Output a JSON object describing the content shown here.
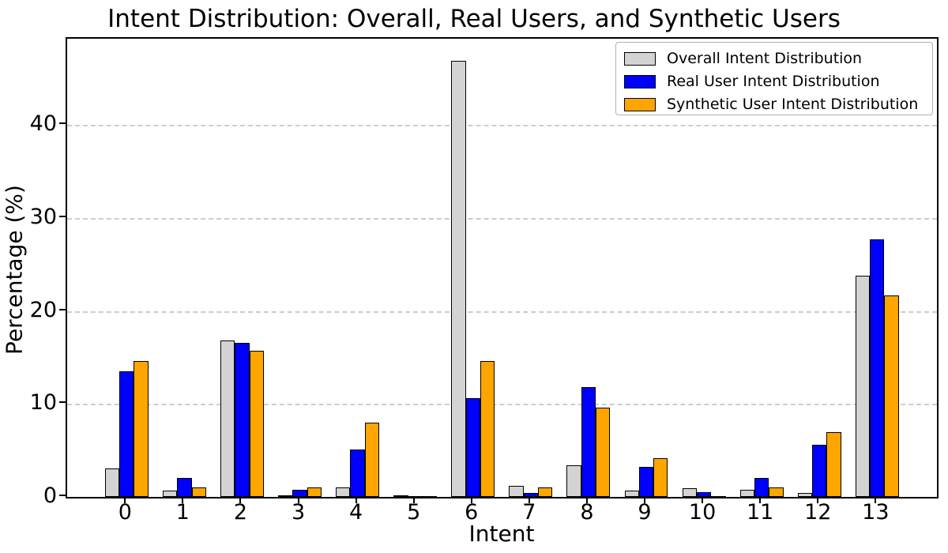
{
  "chart_data": {
    "type": "bar",
    "title": "Intent Distribution: Overall, Real Users, and Synthetic Users",
    "xlabel": "Intent",
    "ylabel": "Percentage (%)",
    "categories": [
      "0",
      "1",
      "2",
      "3",
      "4",
      "5",
      "6",
      "7",
      "8",
      "9",
      "10",
      "11",
      "12",
      "13"
    ],
    "series": [
      {
        "name": "Overall Intent Distribution",
        "color": "#d3d3d3",
        "values": [
          3.1,
          0.7,
          16.8,
          0.2,
          1.0,
          0.2,
          46.9,
          1.2,
          3.4,
          0.7,
          0.9,
          0.8,
          0.4,
          23.8
        ]
      },
      {
        "name": "Real User Intent Distribution",
        "color": "#0000ff",
        "values": [
          13.5,
          2.0,
          16.6,
          0.8,
          5.1,
          0.05,
          10.6,
          0.4,
          11.8,
          3.2,
          0.5,
          2.0,
          5.6,
          27.7
        ]
      },
      {
        "name": "Synthetic User Intent Distribution",
        "color": "#ffa500",
        "values": [
          14.6,
          1.0,
          15.7,
          1.0,
          8.0,
          0.05,
          14.6,
          1.0,
          9.6,
          4.2,
          0.05,
          1.0,
          7.0,
          21.7
        ]
      }
    ],
    "ylim": [
      0,
      49.3
    ],
    "yticks": [
      0,
      10,
      20,
      30,
      40
    ],
    "grid": "horizontal dashed",
    "legend_position": "upper right",
    "bar_edge_color": "#000000",
    "grid_color": "#cccccc",
    "background_color": "#ffffff"
  }
}
